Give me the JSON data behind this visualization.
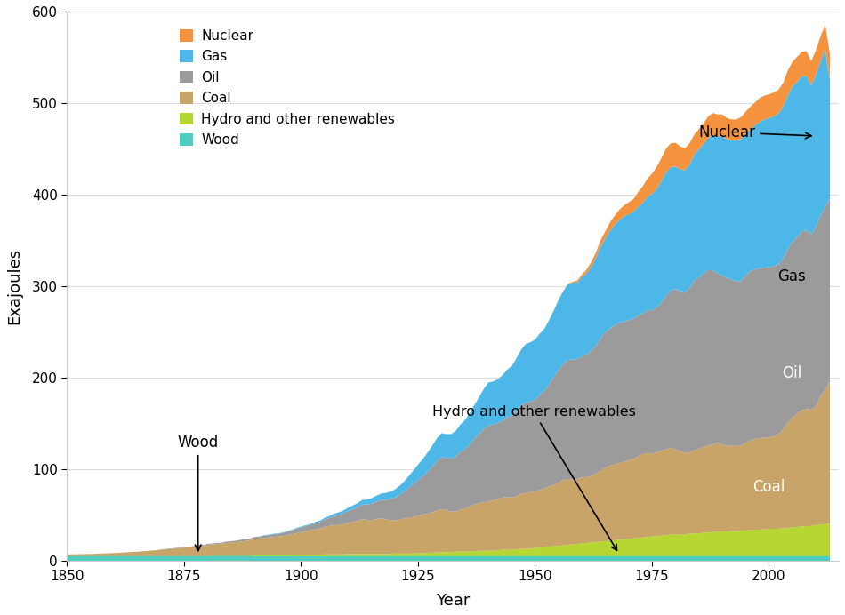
{
  "xlabel": "Year",
  "ylabel": "Exajoules",
  "ylim": [
    0,
    600
  ],
  "xlim": [
    1850,
    2015
  ],
  "colors": {
    "Wood": "#4ecdc0",
    "Hydro": "#b5d633",
    "Coal": "#c8a468",
    "Oil": "#9b9b9b",
    "Gas": "#4db8e8",
    "Nuclear": "#f5923e"
  },
  "legend_labels": [
    "Nuclear",
    "Gas",
    "Oil",
    "Coal",
    "Hydro and other renewables",
    "Wood"
  ],
  "legend_colors": [
    "#f5923e",
    "#4db8e8",
    "#9b9b9b",
    "#c8a468",
    "#b5d633",
    "#4ecdc0"
  ],
  "years": [
    1850,
    1851,
    1852,
    1853,
    1854,
    1855,
    1856,
    1857,
    1858,
    1859,
    1860,
    1861,
    1862,
    1863,
    1864,
    1865,
    1866,
    1867,
    1868,
    1869,
    1870,
    1871,
    1872,
    1873,
    1874,
    1875,
    1876,
    1877,
    1878,
    1879,
    1880,
    1881,
    1882,
    1883,
    1884,
    1885,
    1886,
    1887,
    1888,
    1889,
    1890,
    1891,
    1892,
    1893,
    1894,
    1895,
    1896,
    1897,
    1898,
    1899,
    1900,
    1901,
    1902,
    1903,
    1904,
    1905,
    1906,
    1907,
    1908,
    1909,
    1910,
    1911,
    1912,
    1913,
    1914,
    1915,
    1916,
    1917,
    1918,
    1919,
    1920,
    1921,
    1922,
    1923,
    1924,
    1925,
    1926,
    1927,
    1928,
    1929,
    1930,
    1931,
    1932,
    1933,
    1934,
    1935,
    1936,
    1937,
    1938,
    1939,
    1940,
    1941,
    1942,
    1943,
    1944,
    1945,
    1946,
    1947,
    1948,
    1949,
    1950,
    1951,
    1952,
    1953,
    1954,
    1955,
    1956,
    1957,
    1958,
    1959,
    1960,
    1961,
    1962,
    1963,
    1964,
    1965,
    1966,
    1967,
    1968,
    1969,
    1970,
    1971,
    1972,
    1973,
    1974,
    1975,
    1976,
    1977,
    1978,
    1979,
    1980,
    1981,
    1982,
    1983,
    1984,
    1985,
    1986,
    1987,
    1988,
    1989,
    1990,
    1991,
    1992,
    1993,
    1994,
    1995,
    1996,
    1997,
    1998,
    1999,
    2000,
    2001,
    2002,
    2003,
    2004,
    2005,
    2006,
    2007,
    2008,
    2009,
    2010,
    2011,
    2012,
    2013
  ],
  "wood": [
    5,
    5,
    5,
    5,
    5,
    5,
    5,
    5,
    5,
    5,
    5,
    5,
    5,
    5,
    5,
    5,
    5,
    5,
    5,
    5,
    5,
    5,
    5,
    5,
    5,
    5,
    5,
    5,
    5,
    5,
    5,
    5,
    5,
    5,
    5,
    5,
    5,
    5,
    5,
    5,
    5,
    5,
    5,
    5,
    5,
    5,
    5,
    5,
    5,
    5,
    5,
    5,
    5,
    5,
    5,
    5,
    5,
    5,
    5,
    5,
    5,
    5,
    5,
    5,
    5,
    5,
    5,
    5,
    5,
    5,
    5,
    5,
    5,
    5,
    5,
    5,
    5,
    5,
    5,
    5,
    5,
    5,
    5,
    5,
    5,
    5,
    5,
    5,
    5,
    5,
    5,
    5,
    5,
    5,
    5,
    5,
    5,
    5,
    5,
    5,
    5,
    5,
    5,
    5,
    5,
    5,
    5,
    5,
    5,
    5,
    5,
    5,
    5,
    5,
    5,
    5,
    5,
    5,
    5,
    5,
    5,
    5,
    5,
    5,
    5,
    5,
    5,
    5,
    5,
    5,
    5,
    5,
    5,
    5,
    5,
    5,
    5,
    5,
    5,
    5,
    5,
    5,
    5,
    5,
    5,
    5,
    5,
    5,
    5,
    5,
    5,
    5,
    5,
    5,
    5,
    5,
    5,
    5,
    5,
    5,
    5,
    5,
    5,
    5
  ],
  "hydro": [
    0,
    0,
    0,
    0,
    0,
    0,
    0,
    0,
    0,
    0,
    0,
    0,
    0,
    0,
    0,
    0,
    0,
    0,
    0,
    0,
    0,
    0,
    0,
    0,
    0,
    0,
    0,
    0,
    0,
    0,
    0.5,
    0.5,
    0.5,
    0.5,
    0.5,
    0.5,
    0.5,
    0.5,
    0.5,
    0.5,
    1,
    1,
    1,
    1,
    1,
    1,
    1,
    1,
    1,
    1,
    1.5,
    1.5,
    1.5,
    1.5,
    1.5,
    2,
    2,
    2,
    2,
    2,
    2.5,
    2.5,
    2.5,
    2.5,
    2.5,
    2.5,
    2.5,
    2.5,
    2.5,
    2.5,
    3,
    3,
    3,
    3,
    3,
    3.5,
    3.5,
    3.5,
    4,
    4,
    4.5,
    4.5,
    4.5,
    5,
    5,
    5,
    5.5,
    5.5,
    6,
    6,
    6,
    6,
    6.5,
    7,
    7,
    7,
    7.5,
    8,
    8,
    8,
    9,
    9.5,
    10,
    10.5,
    11,
    11.5,
    12,
    12.5,
    13,
    13.5,
    14,
    14.5,
    15,
    15.5,
    16,
    16.5,
    17,
    17.5,
    18,
    18.5,
    19,
    19.5,
    20,
    20.5,
    21,
    21.5,
    22,
    22.5,
    23,
    23.5,
    24,
    24,
    24,
    24.5,
    25,
    25,
    25.5,
    26,
    26.5,
    27,
    27,
    27,
    27.5,
    27.5,
    28,
    28,
    28.5,
    29,
    29,
    29.5,
    30,
    30,
    30,
    30.5,
    31,
    31.5,
    32,
    32.5,
    33,
    33,
    34,
    34.5,
    35,
    36
  ],
  "coal": [
    2,
    2.1,
    2.2,
    2.3,
    2.4,
    2.5,
    2.7,
    2.9,
    3.1,
    3.3,
    3.5,
    3.8,
    4.1,
    4.4,
    4.7,
    5,
    5.4,
    5.8,
    6.2,
    6.6,
    7,
    7.5,
    8,
    8.5,
    9,
    9.5,
    10,
    10.5,
    11,
    11.5,
    12,
    12.5,
    13,
    13.5,
    14,
    14.5,
    15,
    15.5,
    16,
    17,
    18,
    18.5,
    19,
    19.5,
    20,
    20.5,
    21,
    22,
    23,
    24,
    25,
    26,
    27,
    28,
    29,
    30,
    31,
    32,
    32,
    33,
    34,
    35,
    36,
    38,
    37,
    37,
    38,
    39,
    38,
    37,
    36,
    37,
    38,
    39,
    40,
    41,
    42,
    43,
    44,
    46,
    47,
    46,
    44,
    44,
    46,
    47,
    49,
    51,
    52,
    53,
    54,
    55,
    56,
    57,
    58,
    57,
    58,
    60,
    61,
    62,
    62,
    63,
    64,
    66,
    67,
    69,
    71,
    72,
    71,
    71,
    72,
    72,
    73,
    75,
    78,
    80,
    82,
    83,
    84,
    85,
    86,
    87,
    89,
    91,
    92,
    90,
    92,
    93,
    94,
    95,
    93,
    91,
    89,
    89,
    91,
    92,
    94,
    95,
    96,
    97,
    95,
    94,
    93,
    93,
    93,
    96,
    98,
    99,
    100,
    100,
    100,
    101,
    103,
    108,
    115,
    120,
    124,
    127,
    128,
    127,
    130,
    140,
    147,
    155
  ],
  "oil": [
    0,
    0,
    0,
    0,
    0,
    0,
    0,
    0,
    0,
    0,
    0,
    0,
    0,
    0,
    0,
    0,
    0,
    0,
    0,
    0,
    0.5,
    0.5,
    0.5,
    0.5,
    0.5,
    0.5,
    0.5,
    0.5,
    1,
    1,
    1,
    1,
    1,
    1,
    1.5,
    1.5,
    1.5,
    2,
    2,
    2,
    2,
    2,
    2.5,
    2.5,
    3,
    3,
    3.5,
    4,
    4.5,
    5,
    5,
    5.5,
    6,
    6.5,
    7,
    8,
    9,
    10,
    11,
    12,
    13,
    14,
    15,
    16,
    17,
    18,
    19,
    20,
    21,
    23,
    25,
    27,
    30,
    33,
    36,
    39,
    42,
    46,
    50,
    54,
    57,
    57,
    58,
    60,
    63,
    65,
    68,
    72,
    76,
    80,
    83,
    83,
    83,
    84,
    87,
    89,
    93,
    97,
    99,
    99,
    100,
    104,
    107,
    112,
    118,
    123,
    127,
    130,
    131,
    131,
    132,
    134,
    137,
    140,
    145,
    148,
    150,
    152,
    153,
    153,
    153,
    153,
    154,
    154,
    156,
    157,
    158,
    162,
    168,
    172,
    175,
    175,
    176,
    180,
    185,
    188,
    190,
    192,
    190,
    185,
    185,
    183,
    182,
    180,
    180,
    183,
    185,
    186,
    186,
    186,
    186,
    186,
    186,
    187,
    190,
    192,
    193,
    195,
    196,
    192,
    196,
    198,
    200,
    200
  ],
  "gas": [
    0,
    0,
    0,
    0,
    0,
    0,
    0,
    0,
    0,
    0,
    0,
    0,
    0,
    0,
    0,
    0,
    0,
    0,
    0,
    0,
    0,
    0,
    0,
    0,
    0,
    0,
    0,
    0,
    0,
    0,
    0,
    0,
    0,
    0,
    0,
    0,
    0,
    0,
    0,
    0,
    0,
    0,
    0.5,
    0.5,
    0.5,
    0.5,
    0.5,
    0.5,
    0.5,
    1,
    1,
    1,
    1,
    1.5,
    1.5,
    2,
    2,
    2.5,
    3,
    3,
    3.5,
    4,
    4.5,
    5,
    5.5,
    6,
    6.5,
    7,
    7.5,
    8,
    9,
    10,
    11,
    13,
    15,
    17,
    19,
    21,
    23,
    25,
    26,
    26,
    27,
    28,
    30,
    32,
    34,
    37,
    40,
    44,
    47,
    47,
    48,
    50,
    52,
    55,
    58,
    61,
    64,
    65,
    66,
    67,
    68,
    70,
    73,
    77,
    80,
    83,
    84,
    84,
    87,
    89,
    92,
    96,
    100,
    103,
    107,
    110,
    113,
    115,
    116,
    117,
    119,
    121,
    124,
    128,
    130,
    133,
    135,
    135,
    134,
    133,
    133,
    135,
    138,
    140,
    141,
    144,
    148,
    150,
    152,
    152,
    152,
    154,
    155,
    155,
    155,
    157,
    160,
    162,
    163,
    164,
    165,
    166,
    168,
    170,
    170,
    170,
    168,
    163,
    166,
    169,
    172,
    130
  ],
  "nuclear": [
    0,
    0,
    0,
    0,
    0,
    0,
    0,
    0,
    0,
    0,
    0,
    0,
    0,
    0,
    0,
    0,
    0,
    0,
    0,
    0,
    0,
    0,
    0,
    0,
    0,
    0,
    0,
    0,
    0,
    0,
    0,
    0,
    0,
    0,
    0,
    0,
    0,
    0,
    0,
    0,
    0,
    0,
    0,
    0,
    0,
    0,
    0,
    0,
    0,
    0,
    0,
    0,
    0,
    0,
    0,
    0,
    0,
    0,
    0,
    0,
    0,
    0,
    0,
    0,
    0,
    0,
    0,
    0,
    0,
    0,
    0,
    0,
    0,
    0,
    0,
    0,
    0,
    0,
    0,
    0,
    0,
    0,
    0,
    0,
    0,
    0,
    0,
    0,
    0,
    0,
    0,
    0,
    0,
    0,
    0,
    0,
    0,
    0,
    0,
    0,
    0,
    0,
    0,
    0,
    0,
    0,
    0,
    0.5,
    1,
    2,
    3,
    4,
    5,
    6,
    7,
    8,
    9,
    10,
    11,
    12,
    13,
    14,
    16,
    18,
    20,
    22,
    24,
    25,
    26,
    26,
    26,
    25,
    24,
    23,
    22,
    22,
    23,
    24,
    24,
    24,
    24,
    23,
    23,
    23,
    24,
    24,
    25,
    25,
    26,
    26,
    26,
    26,
    26,
    26,
    27,
    27,
    27,
    27,
    27,
    26,
    27,
    27,
    27,
    28
  ]
}
